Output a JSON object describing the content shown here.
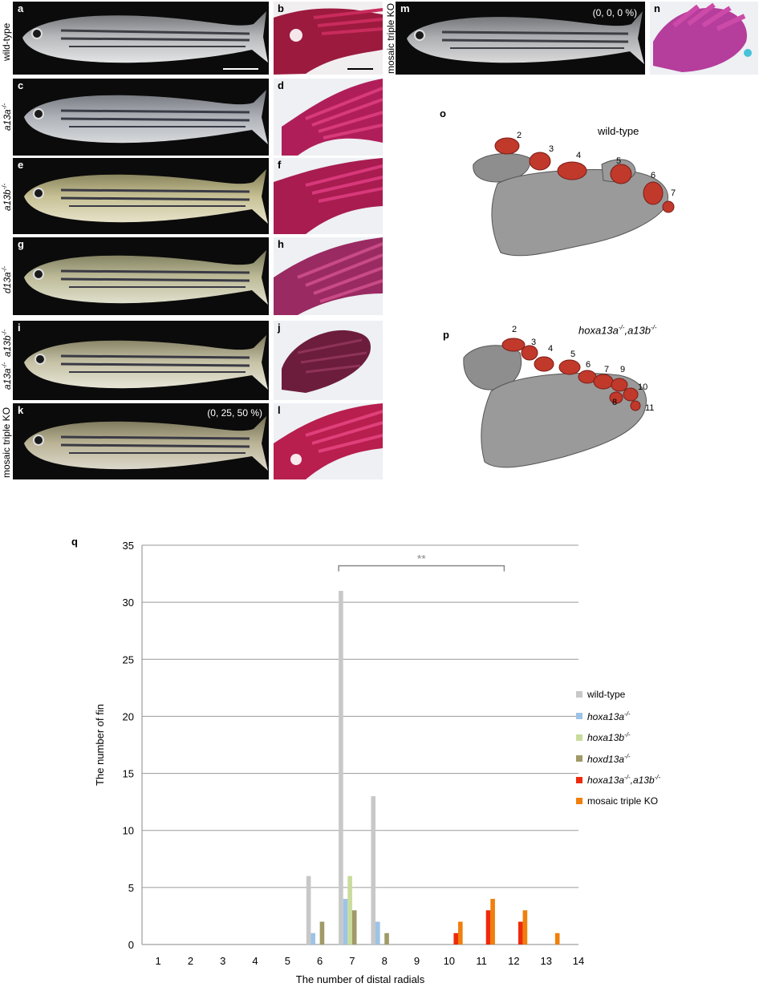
{
  "panels": {
    "a": "a",
    "b": "b",
    "c": "c",
    "d": "d",
    "e": "e",
    "f": "f",
    "g": "g",
    "h": "h",
    "i": "i",
    "j": "j",
    "k": "k",
    "l": "l",
    "m": "m",
    "n": "n",
    "o": "o",
    "p": "p",
    "q": "q"
  },
  "row_labels": {
    "wild_type": "wild-type",
    "a13a": "a13a",
    "a13a_sup": "-/-",
    "a13b": "a13b",
    "a13b_sup": "-/-",
    "d13a": "d13a",
    "d13a_sup": "-/-",
    "double_a": "a13a",
    "double_a_sup": "-/-",
    "double_b": "a13b",
    "double_b_sup": "-/-",
    "mosaic_k": "mosaic triple KO",
    "mosaic_m": "mosaic triple KO"
  },
  "percent_labels": {
    "k": "(0, 25,  50 %)",
    "m": "(0, 0,  0 %)"
  },
  "model_o": {
    "caption": "wild-type",
    "radials": [
      "2",
      "3",
      "4",
      "5",
      "6",
      "7"
    ]
  },
  "model_p": {
    "caption_main": "hoxa13a",
    "caption_sup1": "-/-",
    "caption_mid": ",a13b",
    "caption_sup2": "-/-",
    "radials": [
      "2",
      "3",
      "4",
      "5",
      "6",
      "7",
      "9",
      "10",
      "8",
      "11"
    ]
  },
  "colors": {
    "wild_type": "#c8c8c8",
    "hoxa13a": "#9dc3e6",
    "hoxa13b": "#c9dc9c",
    "hoxd13a": "#a09a68",
    "double": "#ee2a0c",
    "triple": "#f07f0c"
  },
  "chart_data": {
    "type": "bar",
    "xlabel": "The number of distal radials",
    "ylabel": "The number of fin",
    "ylim": [
      0,
      35
    ],
    "yticks": [
      "0",
      "5",
      "10",
      "15",
      "20",
      "25",
      "30",
      "35"
    ],
    "categories": [
      "1",
      "2",
      "3",
      "4",
      "5",
      "6",
      "7",
      "8",
      "9",
      "10",
      "11",
      "12",
      "13",
      "14"
    ],
    "significance": "**",
    "significance_span": [
      "7",
      "12"
    ],
    "series": [
      {
        "name": "wild-type",
        "name_main": "wild-type",
        "name_sup": "",
        "name_mid": "",
        "name_sup2": "",
        "italic": false,
        "color": "#c8c8c8",
        "values": [
          0,
          0,
          0,
          0,
          0,
          6,
          31,
          13,
          0,
          0,
          0,
          0,
          0,
          0
        ]
      },
      {
        "name": "hoxa13a-/-",
        "name_main": "hoxa13a",
        "name_sup": "-/-",
        "name_mid": "",
        "name_sup2": "",
        "italic": true,
        "color": "#9dc3e6",
        "values": [
          0,
          0,
          0,
          0,
          0,
          1,
          4,
          2,
          0,
          0,
          0,
          0,
          0,
          0
        ]
      },
      {
        "name": "hoxa13b-/-",
        "name_main": "hoxa13b",
        "name_sup": "-/-",
        "name_mid": "",
        "name_sup2": "",
        "italic": true,
        "color": "#c9dc9c",
        "values": [
          0,
          0,
          0,
          0,
          0,
          0,
          6,
          0,
          0,
          0,
          0,
          0,
          0,
          0
        ]
      },
      {
        "name": "hoxd13a-/-",
        "name_main": "hoxd13a",
        "name_sup": "-/-",
        "name_mid": "",
        "name_sup2": "",
        "italic": true,
        "color": "#a09a68",
        "values": [
          0,
          0,
          0,
          0,
          0,
          2,
          3,
          1,
          0,
          0,
          0,
          0,
          0,
          0
        ]
      },
      {
        "name": "hoxa13a-/-,a13b-/-",
        "name_main": "hoxa13a",
        "name_sup": "-/-",
        "name_mid": ",a13b",
        "name_sup2": "-/-",
        "italic": true,
        "color": "#ee2a0c",
        "values": [
          0,
          0,
          0,
          0,
          0,
          0,
          0,
          0,
          0,
          1,
          3,
          2,
          0,
          0
        ]
      },
      {
        "name": "mosaic triple KO",
        "name_main": "mosaic triple KO",
        "name_sup": "",
        "name_mid": "",
        "name_sup2": "",
        "italic": false,
        "color": "#f07f0c",
        "values": [
          0,
          0,
          0,
          0,
          0,
          0,
          0,
          0,
          0,
          2,
          4,
          3,
          1,
          0
        ]
      }
    ]
  }
}
